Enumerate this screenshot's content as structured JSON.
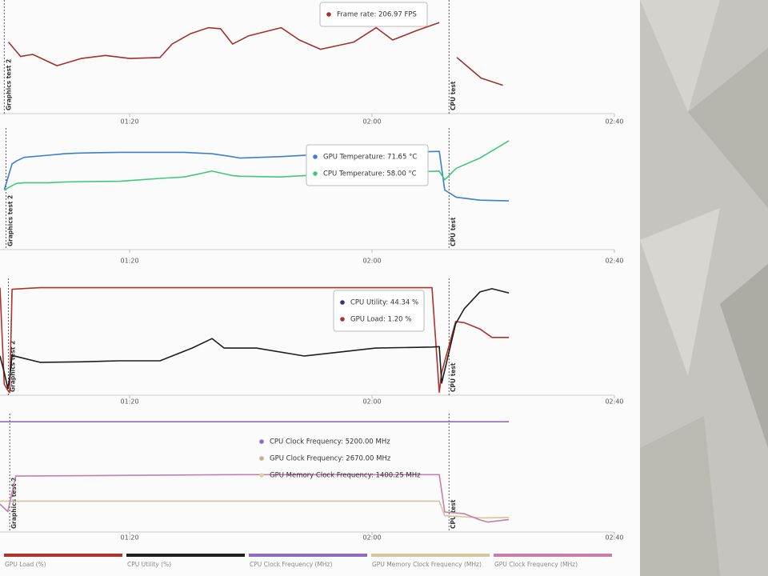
{
  "chart_data": [
    {
      "type": "line",
      "x": [
        60,
        62,
        64,
        68,
        72,
        76,
        80,
        85,
        87,
        90,
        93,
        95,
        97,
        99.6,
        105,
        108,
        111.5,
        117,
        120.7,
        123.4,
        127.3,
        131.1,
        132,
        134,
        138,
        141.6
      ],
      "series": [
        {
          "color": "#a3302a",
          "values": [
            188,
            174,
            176,
            165,
            172,
            175,
            172,
            173,
            186,
            196,
            202,
            201,
            186,
            194,
            202,
            190,
            181,
            188,
            202,
            190,
            199,
            206.97,
            null,
            173,
            153,
            146
          ]
        }
      ],
      "xlim": [
        58.6,
        160
      ],
      "ylim": [
        120,
        225
      ],
      "xticks": [
        {
          "value": 80,
          "label": "01:20"
        },
        {
          "value": 120,
          "label": "02:00"
        },
        {
          "value": 160,
          "label": "02:40"
        }
      ],
      "markers": [
        {
          "x": 59.3,
          "label": "Graphics test 2"
        },
        {
          "x": 132.7,
          "label": "CPU test"
        }
      ],
      "tooltips": [
        {
          "text": "Frame rate: 206.97 FPS",
          "color": "#a3302a"
        }
      ]
    },
    {
      "type": "line",
      "x": [
        59.3,
        60.6,
        61.3,
        62.6,
        66.6,
        69.2,
        71.8,
        78.4,
        85,
        89,
        93.6,
        96.9,
        98.2,
        104.8,
        111.4,
        131.1,
        132,
        133.9,
        137.8,
        142.6
      ],
      "series": [
        {
          "color": "#3a7fd0",
          "values": [
            45,
            63,
            65,
            67.5,
            69,
            70,
            70.5,
            71,
            71,
            71,
            70,
            68,
            67,
            68,
            69.5,
            71.65,
            45,
            40,
            38,
            37.5
          ]
        },
        {
          "color": "#3ec97a",
          "values": [
            45,
            48,
            49.5,
            50,
            50,
            50.5,
            50.8,
            51,
            53,
            54,
            58,
            55,
            54.5,
            54,
            55.5,
            58,
            52,
            60,
            67,
            79
          ]
        }
      ],
      "xlim": [
        58.6,
        160
      ],
      "ylim": [
        5,
        85
      ],
      "xticks": [
        {
          "value": 80,
          "label": "01:20"
        },
        {
          "value": 120,
          "label": "02:00"
        },
        {
          "value": 160,
          "label": "02:40"
        }
      ],
      "markers": [
        {
          "x": 59.6,
          "label": "Graphics test 2"
        },
        {
          "x": 132.7,
          "label": "CPU test"
        }
      ],
      "tooltips": [
        {
          "text": "GPU Temperature: 71.65 °C",
          "color": "#3a7fd0"
        },
        {
          "text": "CPU Temperature: 58.00 °C",
          "color": "#3ec97a"
        }
      ]
    },
    {
      "type": "line",
      "x": [
        58.6,
        59.3,
        59.9,
        60.2,
        60.6,
        65.2,
        71.8,
        78.4,
        85,
        90.3,
        93.6,
        95.6,
        100.9,
        108.8,
        120.6,
        129.9,
        131.1,
        131.5,
        133.8,
        135.2,
        137.8,
        139.8,
        142.6
      ],
      "series": [
        {
          "name": "GPU Load (%)",
          "color": "#b0322c",
          "values": [
            100,
            9,
            3,
            1,
            98.5,
            100,
            100,
            100,
            100,
            100,
            100,
            100,
            100,
            100,
            100,
            100,
            1.2,
            20,
            68,
            67,
            61,
            53,
            53
          ]
        },
        {
          "name": "CPU Utility (%)",
          "color": "#1e1e1e",
          "values": [
            35.5,
            20,
            5,
            15,
            36,
            29.5,
            30,
            31,
            31,
            43,
            52,
            43,
            43,
            35.5,
            43,
            44,
            44.34,
            10,
            66,
            80,
            96,
            99,
            95
          ]
        }
      ],
      "xlim": [
        58.6,
        160
      ],
      "ylim": [
        0,
        105
      ],
      "xticks": [
        {
          "value": 80,
          "label": "01:20"
        },
        {
          "value": 120,
          "label": "02:00"
        },
        {
          "value": 160,
          "label": "02:40"
        }
      ],
      "markers": [
        {
          "x": 60,
          "label": "Graphics test 2"
        },
        {
          "x": 132.7,
          "label": "CPU test"
        }
      ],
      "tooltips": [
        {
          "text": "CPU Utility: 44.34 %",
          "color": "#3d2d7a"
        },
        {
          "text": "GPU Load: 1.20 %",
          "color": "#b0322c"
        }
      ]
    },
    {
      "type": "line",
      "x": [
        58.6,
        59.9,
        61.2,
        98.2,
        131.1,
        132,
        135.2,
        137.8,
        139.1,
        142.6
      ],
      "series": [
        {
          "name": "CPU Clock Frequency (MHz)",
          "color": "#8a6cc4",
          "values": [
            5200,
            5200,
            5200,
            5200,
            5200,
            5200,
            5200,
            5200,
            5200,
            5200
          ]
        },
        {
          "name": "GPU Memory Clock Frequency (MHz)",
          "color": "#d8c49a",
          "values": [
            1400,
            1400,
            1400,
            1400,
            1400.25,
            700,
            650,
            600,
            600,
            620
          ]
        },
        {
          "name": "GPU Clock Frequency (MHz)",
          "color": "#c77fa8",
          "values": [
            1260,
            900,
            2600,
            2670,
            2670,
            880,
            800,
            500,
            400,
            520
          ]
        }
      ],
      "xlim": [
        58.6,
        160
      ],
      "ylim": [
        0,
        5400
      ],
      "xticks": [
        {
          "value": 80,
          "label": "01:20"
        },
        {
          "value": 120,
          "label": "02:00"
        },
        {
          "value": 160,
          "label": "02:40"
        }
      ],
      "markers": [
        {
          "x": 60.2,
          "label": "Graphics test 2"
        },
        {
          "x": 132.7,
          "label": "CPU test"
        }
      ],
      "tooltips": [
        {
          "text": "CPU Clock Frequency: 5200.00 MHz",
          "color": "#8a6cc4"
        },
        {
          "text": "GPU Clock Frequency: 2670.00 MHz",
          "color": "#d3a98f"
        },
        {
          "text": "GPU Memory Clock Frequency: 1400.25 MHz",
          "color": "#e6cf9f"
        }
      ]
    }
  ]
}
